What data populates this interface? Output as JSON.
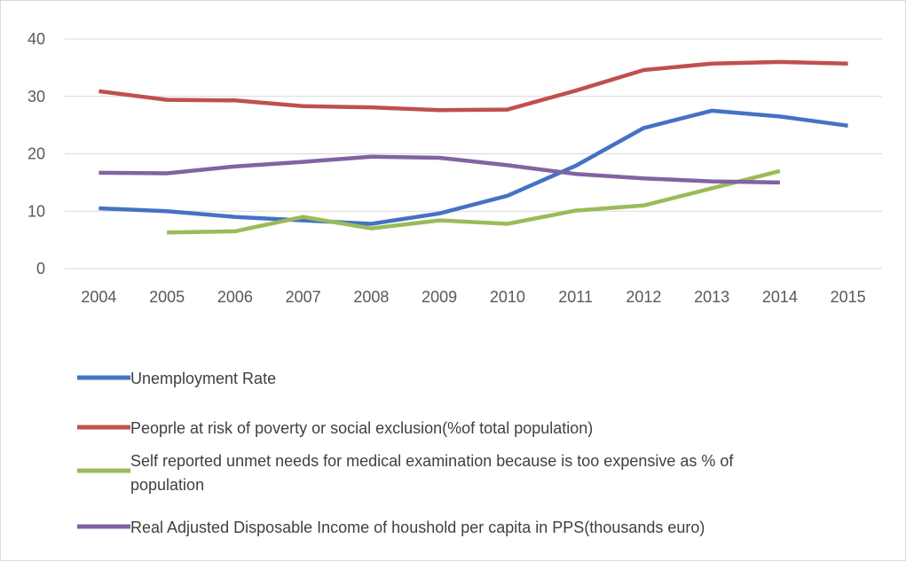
{
  "chart_data": {
    "type": "line",
    "title": "",
    "xlabel": "",
    "ylabel": "",
    "x": [
      "2004",
      "2005",
      "2006",
      "2007",
      "2008",
      "2009",
      "2010",
      "2011",
      "2012",
      "2013",
      "2014",
      "2015"
    ],
    "ylim": [
      0,
      40
    ],
    "yticks": [
      "0",
      "10",
      "20",
      "30",
      "40"
    ],
    "grid": true,
    "legend_position": "bottom",
    "series": [
      {
        "name": "Unemployment Rate",
        "color": "#4472c4",
        "values": [
          10.5,
          10.0,
          9.0,
          8.4,
          7.8,
          9.6,
          12.7,
          17.9,
          24.5,
          27.5,
          26.5,
          24.9
        ]
      },
      {
        "name": "Peoprle at risk of poverty or social exclusion(%of total population)",
        "color": "#c0504d",
        "values": [
          30.9,
          29.4,
          29.3,
          28.3,
          28.1,
          27.6,
          27.7,
          31.0,
          34.6,
          35.7,
          36.0,
          35.7
        ]
      },
      {
        "name": "Self reported unmet needs for medical examination because is too expensive as % of population",
        "legend_lines": [
          "Self reported unmet needs for medical examination because is too expensive as % of",
          "population"
        ],
        "color": "#9bbb59",
        "values": [
          null,
          6.3,
          6.5,
          9.0,
          7.0,
          8.4,
          7.8,
          10.1,
          11.0,
          14.0,
          17.0,
          null
        ]
      },
      {
        "name": "Real Adjusted Disposable Income of houshold per capita in PPS(thousands euro)",
        "color": "#8064a2",
        "values": [
          16.7,
          16.6,
          17.8,
          18.6,
          19.5,
          19.3,
          18.0,
          16.5,
          15.7,
          15.2,
          15.0,
          null
        ]
      }
    ]
  }
}
